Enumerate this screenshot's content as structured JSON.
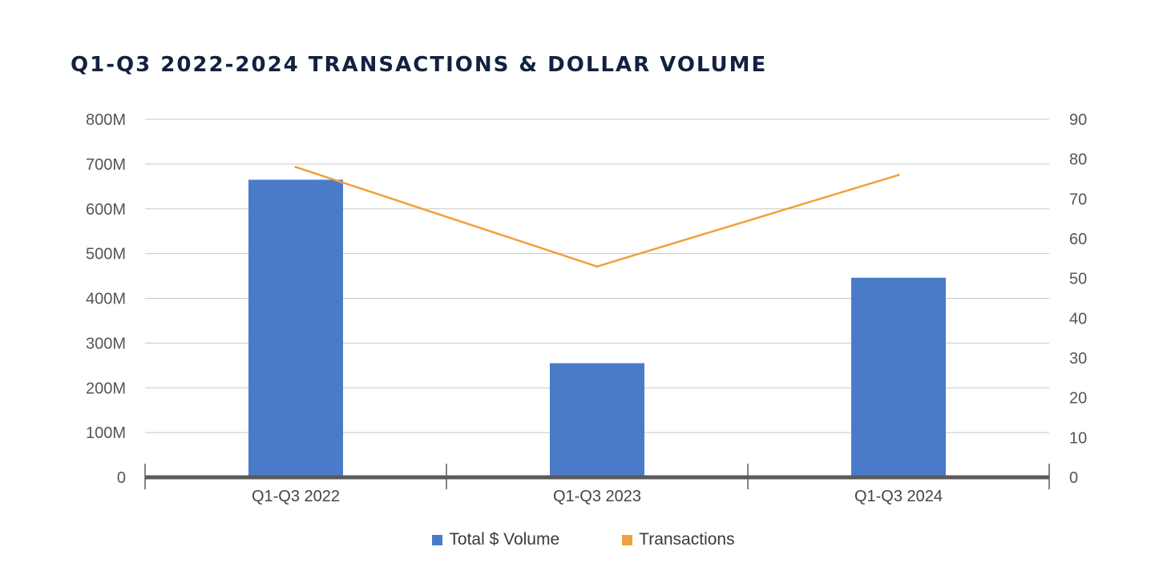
{
  "chart_data": {
    "type": "bar",
    "title": "Q1-Q3 2022-2024 TRANSACTIONS & DOLLAR VOLUME",
    "xlabel": "",
    "ylabel": "",
    "categories": [
      "Q1-Q3 2022",
      "Q1-Q3 2023",
      "Q1-Q3 2024"
    ],
    "series": [
      {
        "name": "Total $ Volume",
        "type": "bar",
        "axis": "left",
        "color": "#4a7bc8",
        "values": [
          665000000,
          255000000,
          446000000
        ]
      },
      {
        "name": "Transactions",
        "type": "line",
        "axis": "right",
        "color": "#f0a040",
        "values": [
          78,
          53,
          76
        ]
      }
    ],
    "y_left": {
      "ylim": [
        0,
        800000000
      ],
      "ticks": [
        0,
        100000000,
        200000000,
        300000000,
        400000000,
        500000000,
        600000000,
        700000000,
        800000000
      ],
      "tick_labels": [
        "0",
        "100M",
        "200M",
        "300M",
        "400M",
        "500M",
        "600M",
        "700M",
        "800M"
      ]
    },
    "y_right": {
      "ylim": [
        0,
        90
      ],
      "ticks": [
        0,
        10,
        20,
        30,
        40,
        50,
        60,
        70,
        80,
        90
      ],
      "tick_labels": [
        "0",
        "10",
        "20",
        "30",
        "40",
        "50",
        "60",
        "70",
        "80",
        "90"
      ]
    },
    "grid": true,
    "legend_position": "bottom",
    "colors": {
      "grid": "#c8c8c8",
      "baseline": "#5a5a5a",
      "tick_text": "#555555",
      "title": "#13213f"
    }
  }
}
